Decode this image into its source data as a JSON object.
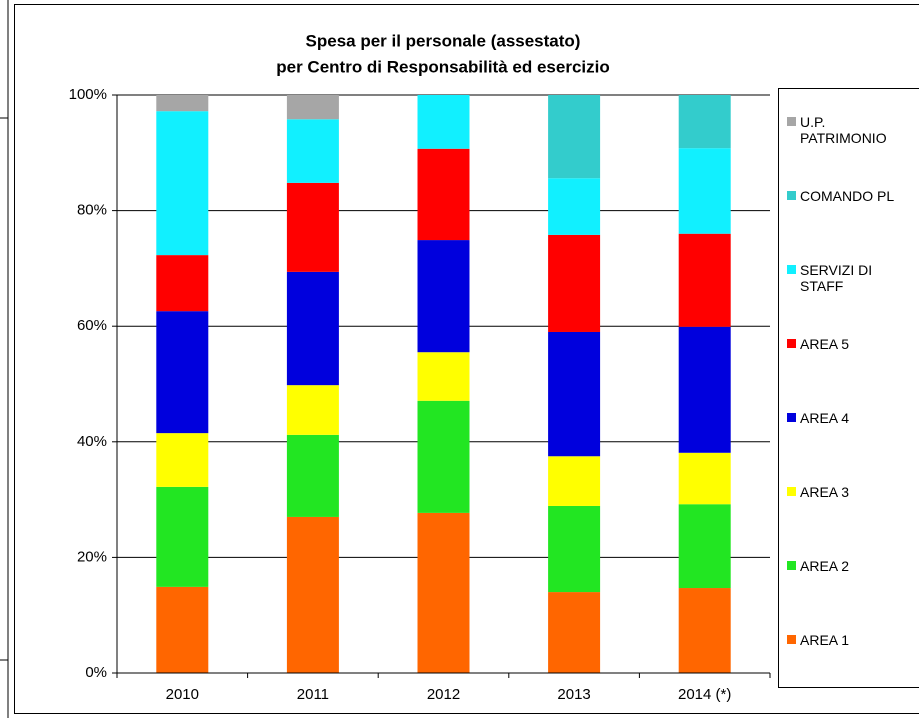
{
  "chart_data": {
    "type": "stacked-bar",
    "title": [
      "Spesa per il personale (assestato)",
      "per Centro di Responsabilità ed esercizio"
    ],
    "categories": [
      "2010",
      "2011",
      "2012",
      "2013",
      "2014 (*)"
    ],
    "series": [
      {
        "name": "AREA 1",
        "color": "#ff6600",
        "values": [
          14.9,
          27.0,
          27.7,
          14.0,
          14.7
        ]
      },
      {
        "name": "AREA 2",
        "color": "#22e622",
        "values": [
          17.3,
          14.2,
          19.4,
          14.9,
          14.5
        ]
      },
      {
        "name": "AREA 3",
        "color": "#ffff00",
        "values": [
          9.3,
          8.6,
          8.4,
          8.6,
          8.9
        ]
      },
      {
        "name": "AREA 4",
        "color": "#0000dd",
        "values": [
          21.1,
          19.6,
          19.4,
          21.5,
          21.8
        ]
      },
      {
        "name": "AREA 5",
        "color": "#ff0000",
        "values": [
          9.7,
          15.4,
          15.8,
          16.8,
          16.1
        ]
      },
      {
        "name": "SERVIZI DI STAFF",
        "color": "#11f0ff",
        "values": [
          24.9,
          11.0,
          9.3,
          9.8,
          14.8
        ]
      },
      {
        "name": "COMANDO PL",
        "color": "#33cccc",
        "values": [
          0,
          0,
          0,
          14.4,
          9.2
        ]
      },
      {
        "name": "U.P. PATRIMONIO",
        "color": "#a6a6a6",
        "values": [
          2.8,
          4.2,
          0,
          0,
          0
        ]
      }
    ],
    "ylim": [
      0,
      100
    ],
    "yticks": [
      {
        "value": 0,
        "label": "0%"
      },
      {
        "value": 20,
        "label": "20%"
      },
      {
        "value": 40,
        "label": "40%"
      },
      {
        "value": 60,
        "label": "60%"
      },
      {
        "value": 80,
        "label": "80%"
      },
      {
        "value": 100,
        "label": "100%"
      }
    ],
    "grid": true,
    "legend": "right"
  }
}
